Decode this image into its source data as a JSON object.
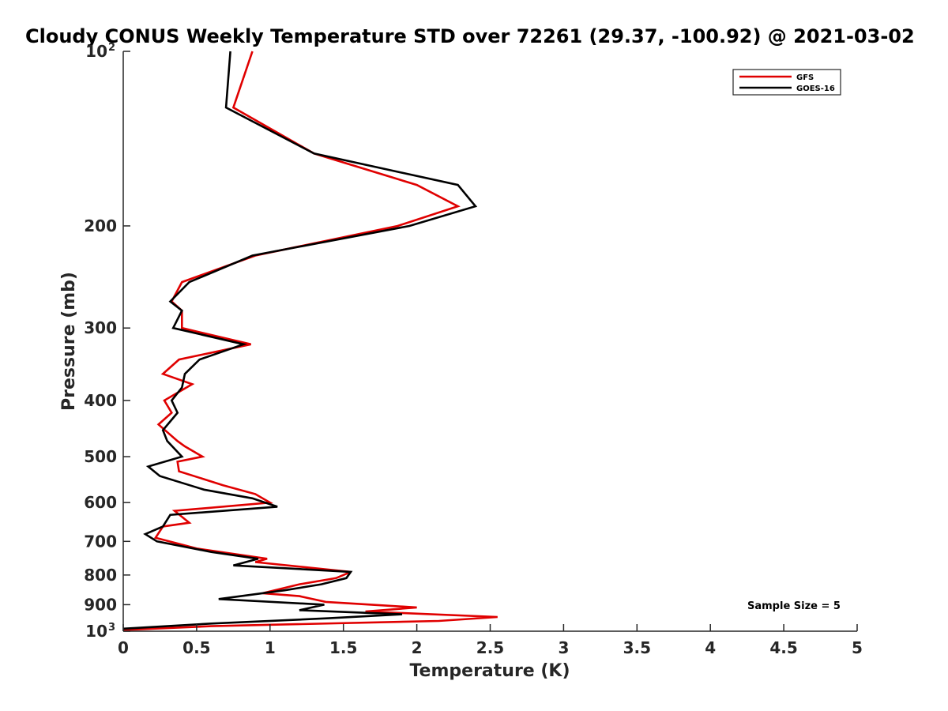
{
  "chart_data": {
    "type": "line",
    "title": "Cloudy CONUS Weekly Temperature STD over 72261 (29.37, -100.92) @ 2021-03-02",
    "xlabel": "Temperature (K)",
    "ylabel": "Pressure (mb)",
    "xlim": [
      0,
      5
    ],
    "ylim": [
      100,
      1000
    ],
    "yscale": "log",
    "y_reversed": true,
    "grid": false,
    "legend_position": "top-right",
    "x_ticks": [
      "0",
      "0.5",
      "1",
      "1.5",
      "2",
      "2.5",
      "3",
      "3.5",
      "4",
      "4.5",
      "5"
    ],
    "y_ticks": [
      {
        "value": 100,
        "base": "10",
        "exp": "2"
      },
      {
        "value": 200,
        "label": "200"
      },
      {
        "value": 300,
        "label": "300"
      },
      {
        "value": 400,
        "label": "400"
      },
      {
        "value": 500,
        "label": "500"
      },
      {
        "value": 600,
        "label": "600"
      },
      {
        "value": 700,
        "label": "700"
      },
      {
        "value": 800,
        "label": "800"
      },
      {
        "value": 900,
        "label": "900"
      },
      {
        "value": 1000,
        "base": "10",
        "exp": "3"
      }
    ],
    "annotation": "Sample Size = 5",
    "series": [
      {
        "name": "GFS",
        "color": "#e00000",
        "points": [
          [
            0.88,
            100
          ],
          [
            0.75,
            125
          ],
          [
            1.3,
            150
          ],
          [
            2.0,
            170
          ],
          [
            2.28,
            185
          ],
          [
            1.87,
            200
          ],
          [
            0.9,
            225
          ],
          [
            0.4,
            250
          ],
          [
            0.33,
            270
          ],
          [
            0.4,
            280
          ],
          [
            0.4,
            300
          ],
          [
            0.87,
            320
          ],
          [
            0.38,
            340
          ],
          [
            0.27,
            360
          ],
          [
            0.47,
            375
          ],
          [
            0.28,
            400
          ],
          [
            0.33,
            420
          ],
          [
            0.24,
            440
          ],
          [
            0.37,
            470
          ],
          [
            0.42,
            480
          ],
          [
            0.54,
            500
          ],
          [
            0.37,
            510
          ],
          [
            0.38,
            530
          ],
          [
            0.68,
            560
          ],
          [
            0.9,
            580
          ],
          [
            1.0,
            600
          ],
          [
            0.35,
            620
          ],
          [
            0.45,
            650
          ],
          [
            0.27,
            660
          ],
          [
            0.22,
            690
          ],
          [
            0.5,
            720
          ],
          [
            0.98,
            750
          ],
          [
            0.9,
            760
          ],
          [
            1.55,
            790
          ],
          [
            1.45,
            810
          ],
          [
            1.2,
            830
          ],
          [
            0.95,
            860
          ],
          [
            1.2,
            870
          ],
          [
            1.38,
            890
          ],
          [
            2.0,
            910
          ],
          [
            1.65,
            925
          ],
          [
            2.55,
            945
          ],
          [
            2.15,
            960
          ],
          [
            0.6,
            980
          ],
          [
            0.0,
            995
          ]
        ]
      },
      {
        "name": "GOES-16",
        "color": "#000000",
        "points": [
          [
            0.73,
            100
          ],
          [
            0.7,
            125
          ],
          [
            1.3,
            150
          ],
          [
            2.28,
            170
          ],
          [
            2.4,
            185
          ],
          [
            1.95,
            200
          ],
          [
            0.88,
            225
          ],
          [
            0.45,
            250
          ],
          [
            0.32,
            270
          ],
          [
            0.4,
            280
          ],
          [
            0.34,
            300
          ],
          [
            0.82,
            320
          ],
          [
            0.52,
            340
          ],
          [
            0.42,
            360
          ],
          [
            0.4,
            380
          ],
          [
            0.33,
            400
          ],
          [
            0.37,
            420
          ],
          [
            0.27,
            450
          ],
          [
            0.3,
            470
          ],
          [
            0.4,
            500
          ],
          [
            0.17,
            520
          ],
          [
            0.25,
            540
          ],
          [
            0.55,
            570
          ],
          [
            0.88,
            590
          ],
          [
            1.05,
            610
          ],
          [
            0.32,
            630
          ],
          [
            0.27,
            660
          ],
          [
            0.15,
            680
          ],
          [
            0.23,
            700
          ],
          [
            0.6,
            730
          ],
          [
            0.92,
            750
          ],
          [
            0.75,
            770
          ],
          [
            1.55,
            790
          ],
          [
            1.52,
            810
          ],
          [
            1.35,
            830
          ],
          [
            1.1,
            850
          ],
          [
            0.65,
            880
          ],
          [
            1.37,
            900
          ],
          [
            1.2,
            920
          ],
          [
            1.9,
            935
          ],
          [
            1.4,
            950
          ],
          [
            0.6,
            970
          ],
          [
            0.0,
            990
          ]
        ]
      }
    ]
  }
}
